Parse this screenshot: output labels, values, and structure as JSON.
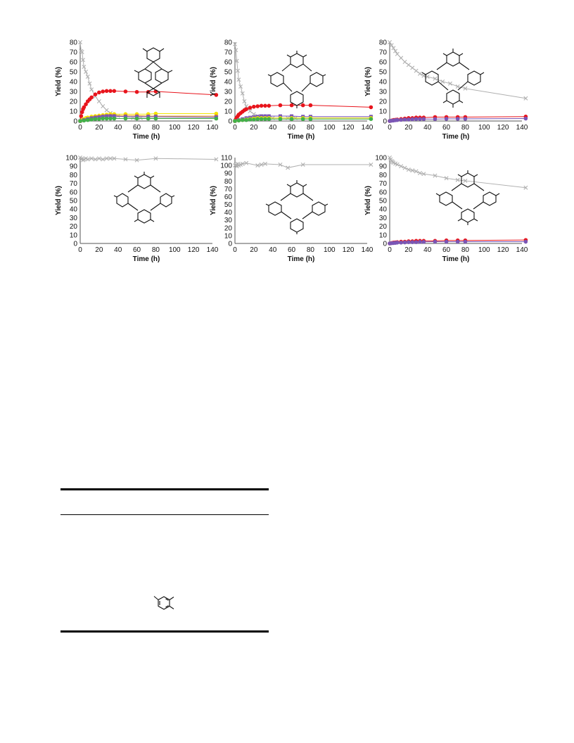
{
  "colors": {
    "gray": "#b0b0b0",
    "red": "#e8141c",
    "yellow": "#f2e600",
    "orange": "#f29a1a",
    "purple": "#7a56b5",
    "green": "#42b04a",
    "blue": "#3b5bc8",
    "teal": "#2aa6a0"
  },
  "chart_data": [
    {
      "type": "scatter",
      "xlabel": "Time (h)",
      "ylabel": "Yield (%)",
      "xlim": [
        0,
        140
      ],
      "ylim": [
        0,
        80
      ],
      "xticks": [
        0,
        20,
        40,
        60,
        80,
        100,
        120,
        140
      ],
      "yticks": [
        0,
        10,
        20,
        30,
        40,
        50,
        60,
        70,
        80
      ],
      "series": [
        {
          "color": "#b0b0b0",
          "marker": "x",
          "x": [
            0,
            1,
            2,
            3,
            4,
            6,
            8,
            10,
            12,
            16,
            20,
            24,
            28,
            32,
            36,
            40,
            48,
            56,
            64,
            72,
            80,
            144
          ],
          "y": [
            80,
            71,
            70,
            62,
            55,
            50,
            45,
            38,
            32,
            25,
            20,
            15,
            11,
            8,
            6,
            5,
            4,
            3,
            3,
            3,
            3,
            3
          ]
        },
        {
          "color": "#e8141c",
          "marker": "circle",
          "x": [
            0,
            1,
            2,
            3,
            4,
            6,
            8,
            10,
            12,
            16,
            20,
            24,
            28,
            32,
            36,
            48,
            60,
            72,
            80,
            144
          ],
          "y": [
            0,
            5,
            9,
            12,
            14,
            17,
            20,
            22,
            24,
            27,
            29,
            30,
            30.5,
            30.5,
            30.5,
            30,
            29.5,
            29.5,
            30,
            26.5
          ]
        },
        {
          "color": "#f2e600",
          "marker": "circle",
          "x": [
            0,
            2,
            4,
            6,
            8,
            12,
            16,
            20,
            24,
            28,
            32,
            36,
            48,
            60,
            72,
            80,
            144
          ],
          "y": [
            0,
            1,
            2,
            3,
            3.5,
            4.5,
            5,
            5.5,
            6,
            6.5,
            7,
            7,
            7,
            7,
            7,
            7.5,
            7.5
          ]
        },
        {
          "color": "#f29a1a",
          "marker": "circle",
          "x": [
            0,
            4,
            8,
            12,
            16,
            20,
            24,
            28,
            32,
            36,
            48,
            60,
            72,
            80,
            144
          ],
          "y": [
            0,
            1,
            2,
            3,
            4,
            4.5,
            5,
            5,
            5.5,
            5.5,
            5.5,
            5.5,
            5,
            5,
            5
          ]
        },
        {
          "color": "#7a56b5",
          "marker": "square",
          "x": [
            0,
            4,
            8,
            12,
            16,
            20,
            24,
            28,
            32,
            36,
            48,
            60,
            72,
            80,
            144
          ],
          "y": [
            0,
            1,
            2,
            3,
            3.5,
            4,
            4.5,
            5,
            5,
            5,
            4.5,
            4.5,
            4.5,
            4.5,
            4
          ]
        },
        {
          "color": "#42b04a",
          "marker": "circle",
          "x": [
            0,
            4,
            8,
            12,
            16,
            20,
            24,
            28,
            32,
            36,
            48,
            60,
            72,
            80,
            144
          ],
          "y": [
            0,
            0.5,
            1,
            1.5,
            2,
            2,
            2.5,
            2.5,
            2.5,
            2.5,
            2.5,
            2.5,
            2.5,
            2.5,
            2.5
          ]
        }
      ]
    },
    {
      "type": "scatter",
      "xlabel": "Time (h)",
      "ylabel": "Yield (%)",
      "xlim": [
        0,
        140
      ],
      "ylim": [
        0,
        80
      ],
      "xticks": [
        0,
        20,
        40,
        60,
        80,
        100,
        120,
        140
      ],
      "yticks": [
        0,
        10,
        20,
        30,
        40,
        50,
        60,
        70,
        80
      ],
      "series": [
        {
          "color": "#b0b0b0",
          "marker": "x",
          "x": [
            0,
            1,
            2,
            3,
            4,
            6,
            8,
            10,
            12,
            16,
            20,
            24,
            28,
            32,
            36,
            40,
            48,
            56,
            64,
            72,
            80,
            144
          ],
          "y": [
            78,
            72,
            61,
            51,
            42,
            35,
            28,
            20,
            15,
            10,
            7,
            5,
            4,
            4,
            3,
            3,
            3,
            3,
            3,
            3,
            3,
            3
          ]
        },
        {
          "color": "#e8141c",
          "marker": "circle",
          "x": [
            0,
            1,
            2,
            3,
            4,
            6,
            8,
            10,
            12,
            16,
            20,
            24,
            28,
            32,
            36,
            48,
            60,
            72,
            80,
            144
          ],
          "y": [
            0,
            2,
            3.5,
            5,
            6.5,
            8,
            9.5,
            11,
            12,
            13.5,
            14.5,
            15,
            15.5,
            15.5,
            15.5,
            16,
            16,
            16,
            16,
            14
          ]
        },
        {
          "color": "#7a56b5",
          "marker": "square",
          "x": [
            0,
            4,
            8,
            12,
            16,
            20,
            24,
            28,
            32,
            36,
            48,
            60,
            72,
            80,
            144
          ],
          "y": [
            0,
            1,
            2,
            3,
            3.5,
            4,
            4.5,
            5,
            5,
            5,
            5,
            5,
            4.5,
            4.5,
            4.5
          ]
        },
        {
          "color": "#f2e600",
          "marker": "circle",
          "x": [
            0,
            4,
            8,
            12,
            16,
            20,
            24,
            28,
            32,
            36,
            48,
            60,
            72,
            80,
            144
          ],
          "y": [
            0,
            0.5,
            1,
            1.5,
            2,
            2.5,
            3,
            3,
            3,
            3,
            3,
            3,
            3,
            3,
            3
          ]
        },
        {
          "color": "#42b04a",
          "marker": "circle",
          "x": [
            0,
            4,
            8,
            12,
            16,
            20,
            24,
            28,
            32,
            36,
            48,
            60,
            72,
            80,
            144
          ],
          "y": [
            0,
            0.5,
            1,
            1,
            1.5,
            1.5,
            2,
            2,
            2,
            2,
            2,
            2,
            2,
            2,
            2
          ]
        }
      ]
    },
    {
      "type": "scatter",
      "xlabel": "Time (h)",
      "ylabel": "Yield (%)",
      "xlim": [
        0,
        140
      ],
      "ylim": [
        0,
        80
      ],
      "xticks": [
        0,
        20,
        40,
        60,
        80,
        100,
        120,
        140
      ],
      "yticks": [
        0,
        10,
        20,
        30,
        40,
        50,
        60,
        70,
        80
      ],
      "series": [
        {
          "color": "#b0b0b0",
          "marker": "x",
          "x": [
            0,
            2,
            4,
            6,
            8,
            12,
            16,
            20,
            24,
            28,
            32,
            36,
            40,
            48,
            56,
            64,
            72,
            80,
            144
          ],
          "y": [
            80,
            77,
            74,
            71,
            68,
            64,
            60,
            57,
            54,
            51,
            48,
            46,
            45,
            43,
            40,
            38,
            35,
            33,
            23
          ]
        },
        {
          "color": "#e8141c",
          "marker": "circle",
          "x": [
            0,
            2,
            4,
            6,
            8,
            12,
            16,
            20,
            24,
            28,
            32,
            36,
            48,
            60,
            72,
            80,
            144
          ],
          "y": [
            0,
            0.5,
            1,
            1.2,
            1.5,
            2,
            2.5,
            3,
            3,
            3.5,
            3.5,
            3.5,
            4,
            4,
            4,
            4,
            4.5
          ]
        },
        {
          "color": "#7a56b5",
          "marker": "circle",
          "x": [
            0,
            2,
            4,
            6,
            8,
            12,
            16,
            20,
            24,
            28,
            32,
            36,
            48,
            60,
            72,
            80,
            144
          ],
          "y": [
            0,
            0.3,
            0.5,
            0.8,
            1,
            1.2,
            1.5,
            1.5,
            1.8,
            2,
            2,
            2,
            2,
            2.2,
            2.2,
            2.2,
            2.5
          ]
        }
      ]
    },
    {
      "type": "scatter",
      "xlabel": "Time (h)",
      "ylabel": "Yield (%)",
      "xlim": [
        0,
        140
      ],
      "ylim": [
        0,
        100
      ],
      "xticks": [
        0,
        20,
        40,
        60,
        80,
        100,
        120,
        140
      ],
      "yticks": [
        0,
        10,
        20,
        30,
        40,
        50,
        60,
        70,
        80,
        90,
        100
      ],
      "series": [
        {
          "color": "#b0b0b0",
          "marker": "x",
          "x": [
            0,
            1,
            2,
            3,
            4,
            6,
            8,
            12,
            16,
            20,
            24,
            28,
            32,
            36,
            48,
            60,
            80,
            144
          ],
          "y": [
            100,
            98,
            99,
            97,
            98,
            99,
            98,
            99,
            98,
            99,
            98,
            99,
            99,
            99,
            98,
            97,
            99,
            98
          ]
        }
      ]
    },
    {
      "type": "scatter",
      "xlabel": "Time (h)",
      "ylabel": "Yield (%)",
      "xlim": [
        0,
        140
      ],
      "ylim": [
        0,
        110
      ],
      "xticks": [
        0,
        20,
        40,
        60,
        80,
        100,
        120,
        140
      ],
      "yticks": [
        0,
        10,
        20,
        30,
        40,
        50,
        60,
        70,
        80,
        90,
        100,
        110
      ],
      "series": [
        {
          "color": "#b0b0b0",
          "marker": "x",
          "x": [
            0,
            1,
            2,
            3,
            4,
            6,
            8,
            12,
            24,
            28,
            32,
            48,
            56,
            72,
            144
          ],
          "y": [
            100,
            101,
            99,
            102,
            100,
            101,
            102,
            103,
            100,
            101,
            102,
            101,
            97,
            101,
            101
          ]
        }
      ]
    },
    {
      "type": "scatter",
      "xlabel": "Time (h)",
      "ylabel": "Yield (%)",
      "xlim": [
        0,
        140
      ],
      "ylim": [
        0,
        100
      ],
      "xticks": [
        0,
        20,
        40,
        60,
        80,
        100,
        120,
        140
      ],
      "yticks": [
        0,
        10,
        20,
        30,
        40,
        50,
        60,
        70,
        80,
        90,
        100
      ],
      "series": [
        {
          "color": "#b0b0b0",
          "marker": "x",
          "x": [
            0,
            1,
            2,
            3,
            4,
            6,
            8,
            12,
            16,
            20,
            24,
            28,
            32,
            36,
            48,
            60,
            72,
            80,
            144
          ],
          "y": [
            100,
            98,
            96,
            95,
            94,
            93,
            92,
            90,
            88,
            86,
            85,
            84,
            82,
            81,
            79,
            76,
            74,
            73,
            65
          ]
        },
        {
          "color": "#e8141c",
          "marker": "circle",
          "x": [
            0,
            2,
            4,
            6,
            8,
            12,
            16,
            20,
            24,
            28,
            32,
            36,
            48,
            60,
            72,
            80,
            144
          ],
          "y": [
            0,
            0.5,
            1,
            1.2,
            1.5,
            2,
            2,
            2.5,
            2.5,
            3,
            3,
            3,
            3,
            3.5,
            3.5,
            3.5,
            4
          ]
        },
        {
          "color": "#7a56b5",
          "marker": "circle",
          "x": [
            0,
            2,
            4,
            6,
            8,
            12,
            16,
            20,
            24,
            28,
            32,
            36,
            48,
            60,
            72,
            80,
            144
          ],
          "y": [
            0,
            0.3,
            0.5,
            0.7,
            1,
            1,
            1.2,
            1.5,
            1.5,
            1.5,
            1.8,
            1.8,
            2,
            2,
            2,
            2,
            2
          ]
        }
      ]
    }
  ]
}
